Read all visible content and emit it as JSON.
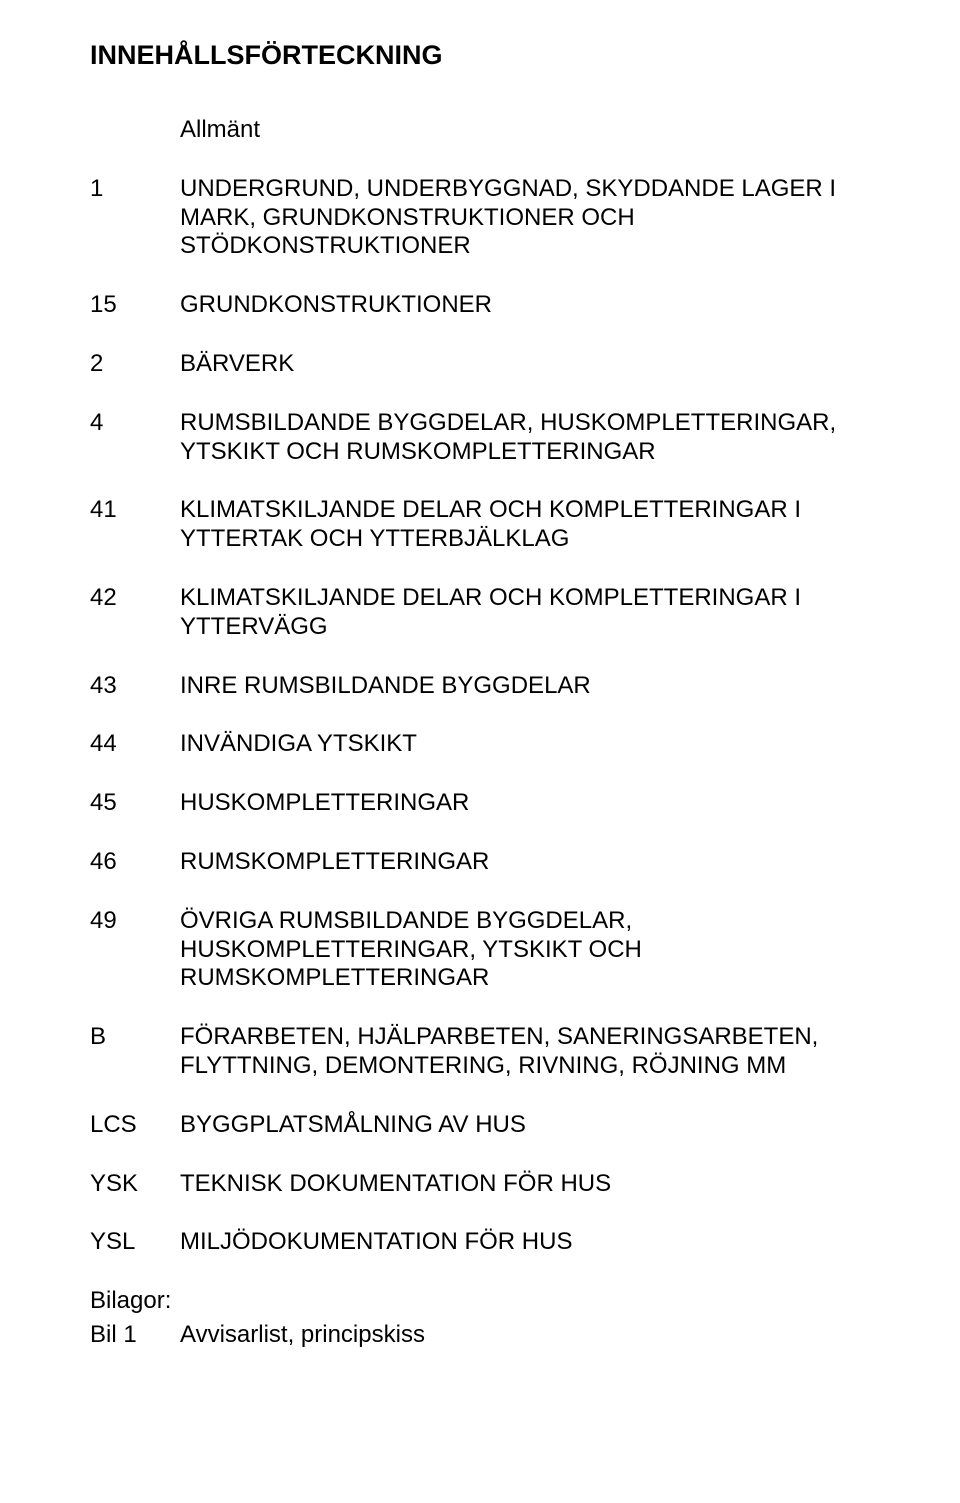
{
  "title": "INNEHÅLLSFÖRTECKNING",
  "rows": [
    {
      "code": "",
      "text": "Allmänt"
    },
    {
      "code": "1",
      "text": "UNDERGRUND, UNDERBYGGNAD, SKYDDANDE LAGER I MARK, GRUNDKONSTRUKTIONER OCH STÖDKONSTRUKTIONER"
    },
    {
      "code": "15",
      "text": "GRUNDKONSTRUKTIONER"
    },
    {
      "code": "2",
      "text": "BÄRVERK"
    },
    {
      "code": "4",
      "text": "RUMSBILDANDE BYGGDELAR, HUSKOMPLETTERINGAR, YTSKIKT OCH RUMSKOMPLETTERINGAR"
    },
    {
      "code": "41",
      "text": "KLIMATSKILJANDE DELAR OCH KOMPLETTERINGAR I YTTERTAK OCH YTTERBJÄLKLAG"
    },
    {
      "code": "42",
      "text": "KLIMATSKILJANDE DELAR OCH KOMPLETTERINGAR I YTTERVÄGG"
    },
    {
      "code": "43",
      "text": "INRE RUMSBILDANDE BYGGDELAR"
    },
    {
      "code": "44",
      "text": "INVÄNDIGA YTSKIKT"
    },
    {
      "code": "45",
      "text": "HUSKOMPLETTERINGAR"
    },
    {
      "code": "46",
      "text": "RUMSKOMPLETTERINGAR"
    },
    {
      "code": "49",
      "text": "ÖVRIGA RUMSBILDANDE BYGGDELAR, HUSKOMPLETTERINGAR, YTSKIKT OCH RUMSKOMPLETTERINGAR"
    },
    {
      "code": "B",
      "text": "FÖRARBETEN, HJÄLPARBETEN, SANERINGSARBETEN, FLYTTNING, DEMONTERING, RIVNING, RÖJNING MM"
    },
    {
      "code": "LCS",
      "text": "BYGGPLATSMÅLNING AV HUS"
    },
    {
      "code": "YSK",
      "text": "TEKNISK DOKUMENTATION FÖR HUS"
    },
    {
      "code": "YSL",
      "text": "MILJÖDOKUMENTATION FÖR HUS"
    }
  ],
  "attachments": {
    "label": "Bilagor:",
    "item_code": "Bil 1",
    "item_text": "Avvisarlist, principskiss"
  }
}
